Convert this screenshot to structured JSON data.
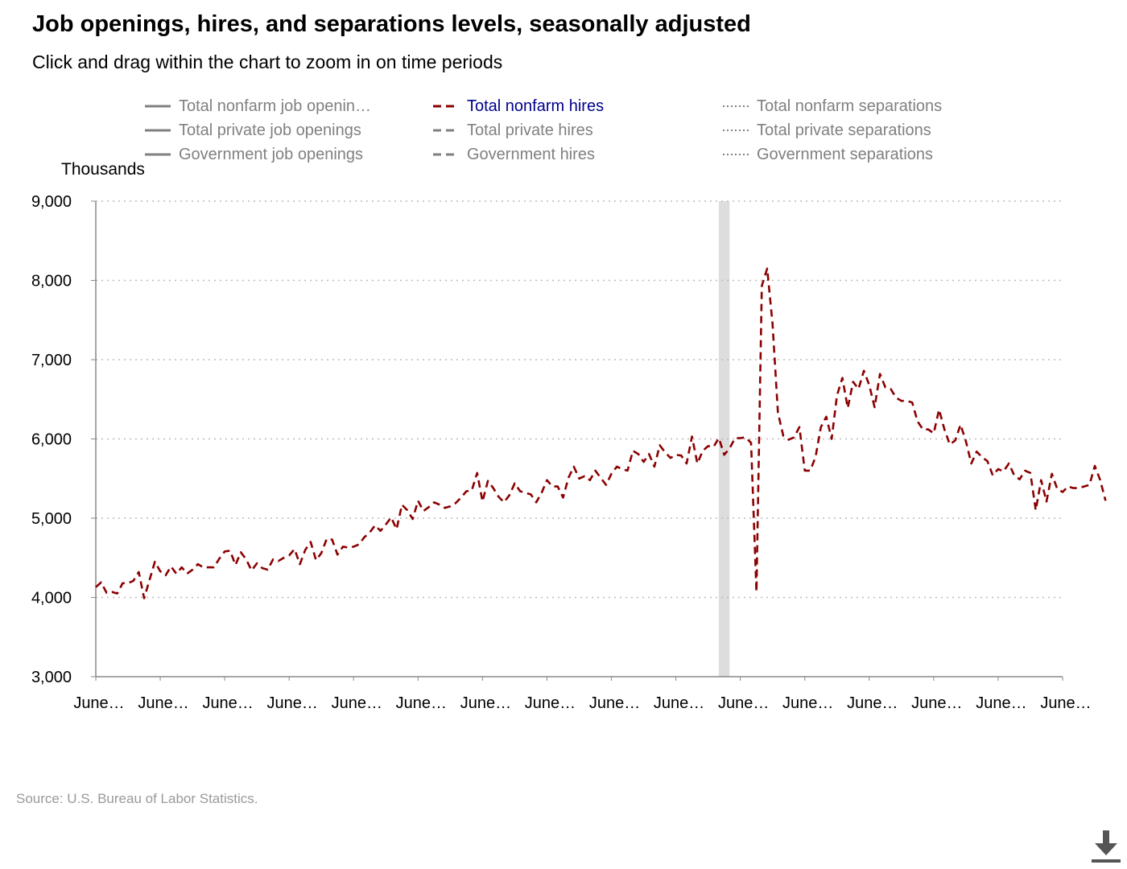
{
  "title": "Job openings, hires, and separations levels, seasonally adjusted",
  "subtitle": "Click and drag within the chart to zoom in on time periods",
  "legend": [
    {
      "label": "Total nonfarm job openin…",
      "style": "solid",
      "active": false
    },
    {
      "label": "Total nonfarm hires",
      "style": "dashed",
      "active": true
    },
    {
      "label": "Total nonfarm separations",
      "style": "dotted",
      "active": false
    },
    {
      "label": "Total private job openings",
      "style": "solid",
      "active": false
    },
    {
      "label": "Total private hires",
      "style": "dashed",
      "active": false
    },
    {
      "label": "Total private separations",
      "style": "dotted",
      "active": false
    },
    {
      "label": "Government job openings",
      "style": "solid",
      "active": false
    },
    {
      "label": "Government hires",
      "style": "dashed",
      "active": false
    },
    {
      "label": "Government separations",
      "style": "dotted",
      "active": false
    }
  ],
  "source": "Source: U.S. Bureau of Labor Statistics.",
  "download_icon": "download-icon",
  "colors": {
    "series": "#8b0000",
    "legend_inactive": "#808080",
    "legend_active": "#00008b",
    "gridline": "#bbbbbb",
    "recession_band": "#dddddd",
    "axis": "#888888"
  },
  "chart_data": {
    "type": "line",
    "ylabel": "Thousands",
    "ylim": [
      3000,
      9000
    ],
    "yticks": [
      "3,000",
      "4,000",
      "5,000",
      "6,000",
      "7,000",
      "8,000",
      "9,000"
    ],
    "xlim": [
      "2014-06",
      "2029-06"
    ],
    "xtick_labels": [
      "June…",
      "June…",
      "June…",
      "June…",
      "June…",
      "June…",
      "June…",
      "June…",
      "June…",
      "June…",
      "June…",
      "June…",
      "June…",
      "June…",
      "June…",
      "June…"
    ],
    "grid": "horizontal dotted",
    "recession_shading": [
      "2024-02",
      "2024-04"
    ],
    "series": [
      {
        "name": "Total nonfarm hires",
        "style": "dashed",
        "start": "2014-06",
        "frequency": "monthly",
        "values": [
          4130,
          4190,
          4060,
          4070,
          4050,
          4180,
          4180,
          4210,
          4320,
          3990,
          4220,
          4450,
          4330,
          4280,
          4390,
          4300,
          4380,
          4300,
          4350,
          4420,
          4380,
          4380,
          4380,
          4490,
          4580,
          4590,
          4410,
          4570,
          4480,
          4340,
          4430,
          4370,
          4350,
          4480,
          4460,
          4500,
          4530,
          4610,
          4420,
          4600,
          4700,
          4470,
          4560,
          4740,
          4730,
          4540,
          4640,
          4630,
          4640,
          4670,
          4760,
          4820,
          4910,
          4840,
          4920,
          5010,
          4860,
          5170,
          5100,
          4990,
          5220,
          5090,
          5140,
          5200,
          5170,
          5130,
          5150,
          5190,
          5260,
          5340,
          5350,
          5570,
          5210,
          5470,
          5380,
          5270,
          5200,
          5290,
          5440,
          5340,
          5320,
          5300,
          5200,
          5320,
          5480,
          5400,
          5400,
          5260,
          5510,
          5650,
          5500,
          5530,
          5480,
          5600,
          5510,
          5420,
          5560,
          5650,
          5620,
          5600,
          5850,
          5810,
          5710,
          5810,
          5650,
          5920,
          5830,
          5760,
          5800,
          5790,
          5690,
          6030,
          5690,
          5850,
          5910,
          5900,
          6010,
          5800,
          5880,
          6010,
          6010,
          6020,
          5950,
          4070,
          7930,
          8150,
          7450,
          6330,
          6040,
          5990,
          6020,
          6150,
          5600,
          5600,
          5770,
          6150,
          6280,
          6000,
          6550,
          6770,
          6390,
          6720,
          6630,
          6860,
          6680,
          6400,
          6820,
          6650,
          6630,
          6520,
          6480,
          6480,
          6460,
          6220,
          6120,
          6120,
          6070,
          6370,
          6120,
          5930,
          5980,
          6180,
          5970,
          5690,
          5840,
          5770,
          5720,
          5540,
          5620,
          5590,
          5690,
          5540,
          5490,
          5600,
          5570,
          5100,
          5480,
          5210,
          5560,
          5370,
          5330,
          5400,
          5380,
          5380,
          5400,
          5420,
          5660,
          5480,
          5220
        ]
      }
    ]
  }
}
